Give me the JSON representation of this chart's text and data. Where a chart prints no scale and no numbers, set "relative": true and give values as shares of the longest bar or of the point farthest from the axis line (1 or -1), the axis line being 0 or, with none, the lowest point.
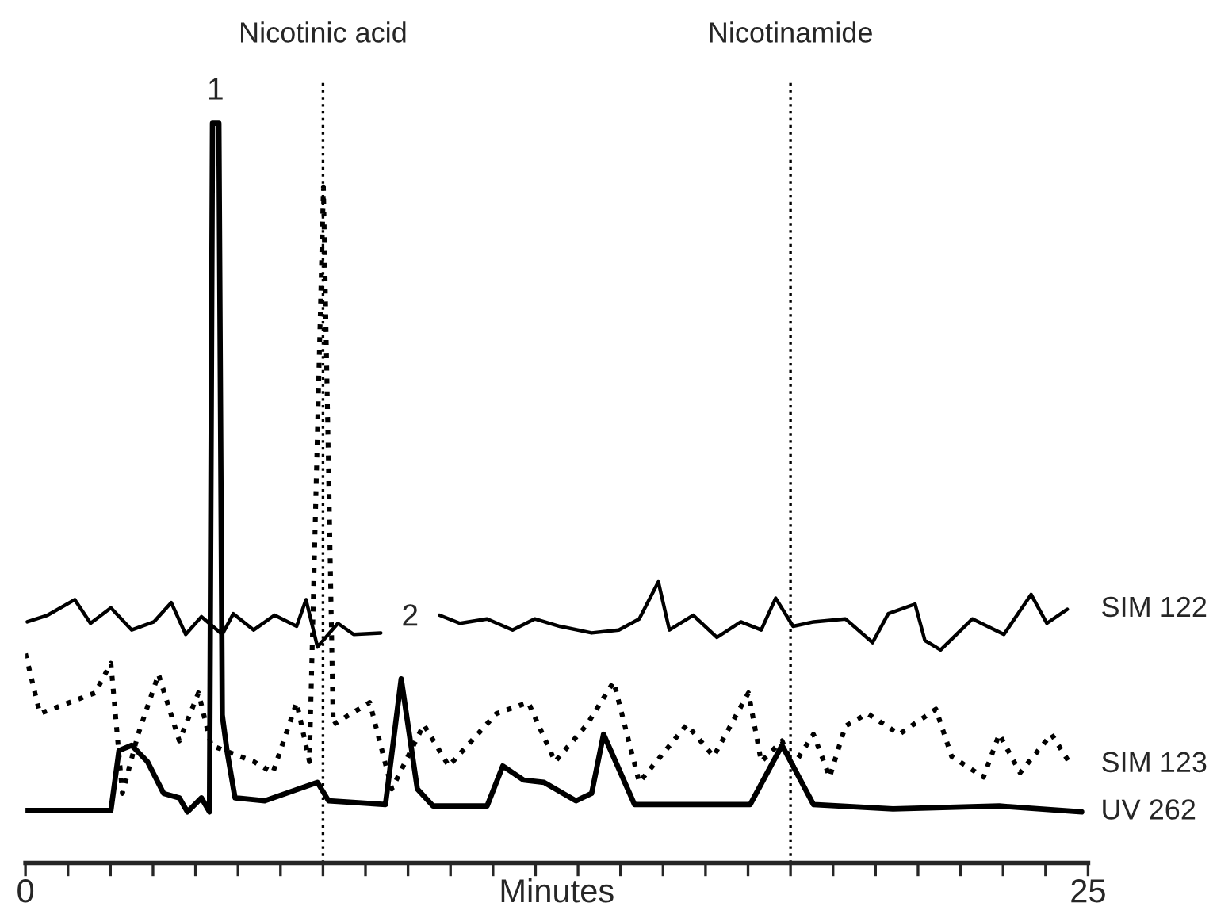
{
  "chart_data": {
    "type": "line",
    "relative": true,
    "xlabel": "Minutes",
    "xlim": [
      0,
      25
    ],
    "xticks": [
      0,
      {
        "value": 1,
        "label": null
      },
      {
        "value": 2,
        "label": null
      },
      {
        "value": 3,
        "label": null
      },
      {
        "value": 4,
        "label": null
      },
      {
        "value": 5,
        "label": null
      },
      {
        "value": 6,
        "label": null
      },
      {
        "value": 7,
        "label": null
      },
      {
        "value": 8,
        "label": null
      },
      {
        "value": 9,
        "label": null
      },
      {
        "value": 10,
        "label": null
      },
      {
        "value": 11,
        "label": null
      },
      {
        "value": 12,
        "label": null
      },
      {
        "value": 13,
        "label": null
      },
      {
        "value": 14,
        "label": null
      },
      {
        "value": 15,
        "label": null
      },
      {
        "value": 16,
        "label": null
      },
      {
        "value": 17,
        "label": null
      },
      {
        "value": 18,
        "label": null
      },
      {
        "value": 19,
        "label": null
      },
      {
        "value": 20,
        "label": null
      },
      {
        "value": 21,
        "label": null
      },
      {
        "value": 22,
        "label": null
      },
      {
        "value": 23,
        "label": null
      },
      {
        "value": 24,
        "label": null
      },
      25
    ],
    "tick_labels": "x",
    "grid": false,
    "legend": false,
    "marker": "none",
    "ref_lines": [
      {
        "axis": "x",
        "value": 7.0,
        "label": "Nicotinic acid",
        "color": "#000000",
        "line_style": "dotted"
      },
      {
        "axis": "x",
        "value": 18.0,
        "label": "Nicotinamide",
        "color": "#000000",
        "line_style": "dotted"
      }
    ],
    "annotations": [
      {
        "text": "1",
        "x": 4.47,
        "y": 1
      },
      "2"
    ],
    "series": [
      {
        "name": "SIM 122",
        "color": "#000000",
        "line_style": "solid",
        "x": [
          0.04,
          0.52,
          1.16,
          1.53,
          2.01,
          2.5,
          3.02,
          3.43,
          3.77,
          4.14,
          4.63,
          4.89,
          5.37,
          5.86,
          6.38,
          6.6,
          6.87,
          7.35,
          7.72,
          8.36,
          9.0,
          9.74,
          10.22,
          10.86,
          11.46,
          11.98,
          12.57,
          13.32,
          13.96,
          14.44,
          14.89,
          15.15,
          15.71,
          16.27,
          16.83,
          17.31,
          17.65,
          18.06,
          18.54,
          19.29,
          19.93,
          20.3,
          20.93,
          21.16,
          21.53,
          22.28,
          23.02,
          23.66,
          24.03,
          24.51
        ],
        "values": [
          0.326,
          0.335,
          0.356,
          0.324,
          0.345,
          0.315,
          0.326,
          0.352,
          0.309,
          0.333,
          0.309,
          0.337,
          0.315,
          0.335,
          0.32,
          0.356,
          0.292,
          0.324,
          0.309,
          0.311,
          null,
          0.335,
          0.324,
          0.33,
          0.315,
          0.33,
          0.32,
          0.311,
          0.315,
          0.33,
          0.38,
          0.315,
          0.335,
          0.305,
          0.326,
          0.315,
          0.358,
          0.32,
          0.326,
          0.33,
          0.298,
          0.337,
          0.35,
          0.301,
          0.288,
          0.33,
          0.309,
          0.363,
          0.324,
          0.343
        ]
      },
      {
        "name": "SIM 123",
        "color": "#000000",
        "line_style": "dotted",
        "x": [
          0,
          0.34,
          1.64,
          2.01,
          2.28,
          2.65,
          3.13,
          3.62,
          4.07,
          4.37,
          5.37,
          5.82,
          6.38,
          6.68,
          7.01,
          7.24,
          8.1,
          8.62,
          9.37,
          9.96,
          11.08,
          11.83,
          12.46,
          13.21,
          13.84,
          14.44,
          15.56,
          16.19,
          17.01,
          17.31,
          17.8,
          18.06,
          18.54,
          18.92,
          19.29,
          19.81,
          20.56,
          21.42,
          21.79,
          22.54,
          22.91,
          23.4,
          24.14,
          24.59
        ],
        "values": [
          0.283,
          0.202,
          0.23,
          0.27,
          0.094,
          0.174,
          0.255,
          0.165,
          0.23,
          0.159,
          0.137,
          0.122,
          0.217,
          0.137,
          0.914,
          0.187,
          0.217,
          0.1,
          0.187,
          0.131,
          0.202,
          0.217,
          0.137,
          0.187,
          0.245,
          0.109,
          0.187,
          0.144,
          0.23,
          0.137,
          0.165,
          0.131,
          0.174,
          0.116,
          0.185,
          0.202,
          0.174,
          0.208,
          0.144,
          0.116,
          0.174,
          0.122,
          0.174,
          0.133
        ]
      },
      {
        "name": "UV 262",
        "color": "#000000",
        "line_style": "solid",
        "x": [
          0,
          2.01,
          2.2,
          2.5,
          2.87,
          3.25,
          3.62,
          3.81,
          4.14,
          4.33,
          4.4,
          4.55,
          4.63,
          4.74,
          4.93,
          5.63,
          6.87,
          7.13,
          8.47,
          8.84,
          9.22,
          9.59,
          10.86,
          11.23,
          11.72,
          12.2,
          12.95,
          13.32,
          13.6,
          14.33,
          17.05,
          17.8,
          18.54,
          20.41,
          22.91,
          24.85
        ],
        "values": [
          0.071,
          0.071,
          0.152,
          0.159,
          0.137,
          0.094,
          0.088,
          0.069,
          0.088,
          0.069,
          1,
          1,
          0.2,
          0.152,
          0.088,
          0.084,
          0.109,
          0.084,
          0.079,
          0.249,
          0.1,
          0.077,
          0.077,
          0.131,
          0.112,
          0.109,
          0.084,
          0.094,
          0.174,
          0.079,
          0.079,
          0.159,
          0.079,
          0.073,
          0.077,
          0.069
        ]
      }
    ]
  }
}
